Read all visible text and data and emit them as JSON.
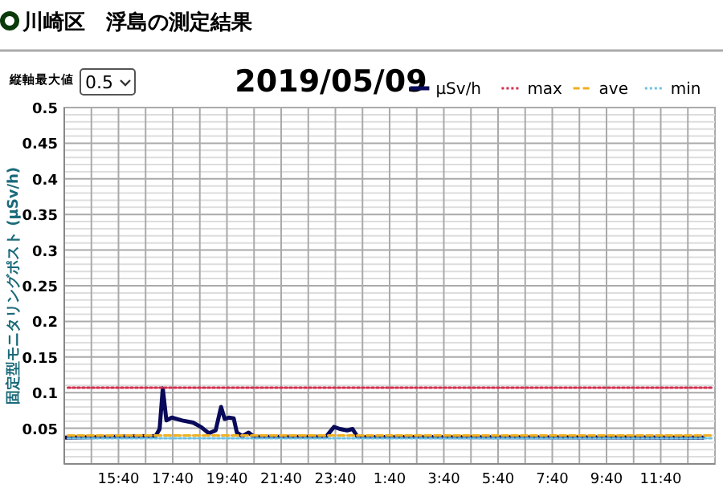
{
  "chart_data": {
    "type": "line",
    "title": "2019/05/09",
    "subtitle": "川崎区　浮島の測定結果",
    "ylabel": "固定型モニタリングポスト (μSv/h)",
    "annotations": [
      "縦軸最大値",
      "0.5"
    ],
    "xlim": [
      "2019-05-08T13:40",
      "2019-05-09T13:40"
    ],
    "xticks": [
      {
        "value": "2019-05-08T14:40",
        "label": null
      },
      {
        "value": "2019-05-08T15:40",
        "label": "15:40"
      },
      {
        "value": "2019-05-08T16:40",
        "label": null
      },
      {
        "value": "2019-05-08T17:40",
        "label": "17:40"
      },
      {
        "value": "2019-05-08T18:40",
        "label": null
      },
      {
        "value": "2019-05-08T19:40",
        "label": "19:40"
      },
      {
        "value": "2019-05-08T20:40",
        "label": null
      },
      {
        "value": "2019-05-08T21:40",
        "label": "21:40"
      },
      {
        "value": "2019-05-08T22:40",
        "label": null
      },
      {
        "value": "2019-05-08T23:40",
        "label": "23:40"
      },
      {
        "value": "2019-05-09T00:40",
        "label": null
      },
      {
        "value": "2019-05-09T01:40",
        "label": "1:40"
      },
      {
        "value": "2019-05-09T02:40",
        "label": null
      },
      {
        "value": "2019-05-09T03:40",
        "label": "3:40"
      },
      {
        "value": "2019-05-09T04:40",
        "label": null
      },
      {
        "value": "2019-05-09T05:40",
        "label": "5:40"
      },
      {
        "value": "2019-05-09T06:40",
        "label": null
      },
      {
        "value": "2019-05-09T07:40",
        "label": "7:40"
      },
      {
        "value": "2019-05-09T08:40",
        "label": null
      },
      {
        "value": "2019-05-09T09:40",
        "label": "9:40"
      },
      {
        "value": "2019-05-09T10:40",
        "label": null
      },
      {
        "value": "2019-05-09T11:40",
        "label": "11:40"
      },
      {
        "value": "2019-05-09T12:40",
        "label": null
      }
    ],
    "ylim": [
      0,
      0.5
    ],
    "yticks": [
      {
        "value": 0.01,
        "label": null
      },
      {
        "value": 0.02,
        "label": null
      },
      {
        "value": 0.03,
        "label": null
      },
      {
        "value": 0.04,
        "label": null
      },
      {
        "value": 0.05,
        "label": "0.05"
      },
      {
        "value": 0.06,
        "label": null
      },
      {
        "value": 0.07,
        "label": null
      },
      {
        "value": 0.08,
        "label": null
      },
      {
        "value": 0.09,
        "label": null
      },
      {
        "value": 0.1,
        "label": "0.1"
      },
      {
        "value": 0.11,
        "label": null
      },
      {
        "value": 0.12,
        "label": null
      },
      {
        "value": 0.13,
        "label": null
      },
      {
        "value": 0.14,
        "label": null
      },
      {
        "value": 0.15,
        "label": "0.15"
      },
      {
        "value": 0.16,
        "label": null
      },
      {
        "value": 0.17,
        "label": null
      },
      {
        "value": 0.18,
        "label": null
      },
      {
        "value": 0.19,
        "label": null
      },
      {
        "value": 0.2,
        "label": "0.2"
      },
      {
        "value": 0.21,
        "label": null
      },
      {
        "value": 0.22,
        "label": null
      },
      {
        "value": 0.23,
        "label": null
      },
      {
        "value": 0.24,
        "label": null
      },
      {
        "value": 0.25,
        "label": "0.25"
      },
      {
        "value": 0.26,
        "label": null
      },
      {
        "value": 0.27,
        "label": null
      },
      {
        "value": 0.28,
        "label": null
      },
      {
        "value": 0.29,
        "label": null
      },
      {
        "value": 0.3,
        "label": "0.3"
      },
      {
        "value": 0.31,
        "label": null
      },
      {
        "value": 0.32,
        "label": null
      },
      {
        "value": 0.33,
        "label": null
      },
      {
        "value": 0.34,
        "label": null
      },
      {
        "value": 0.35,
        "label": "0.35"
      },
      {
        "value": 0.36,
        "label": null
      },
      {
        "value": 0.37,
        "label": null
      },
      {
        "value": 0.38,
        "label": null
      },
      {
        "value": 0.39,
        "label": null
      },
      {
        "value": 0.4,
        "label": "0.4"
      },
      {
        "value": 0.41,
        "label": null
      },
      {
        "value": 0.42,
        "label": null
      },
      {
        "value": 0.43,
        "label": null
      },
      {
        "value": 0.44,
        "label": null
      },
      {
        "value": 0.45,
        "label": "0.45"
      },
      {
        "value": 0.46,
        "label": null
      },
      {
        "value": 0.47,
        "label": null
      },
      {
        "value": 0.48,
        "label": null
      },
      {
        "value": 0.49,
        "label": null
      },
      {
        "value": 0.5,
        "label": "0.5"
      }
    ],
    "grid": true,
    "legend": "top right",
    "marker": "none",
    "series": [
      {
        "name": "μSv/h",
        "color": "#0a0a5a",
        "line_style": "solid",
        "x": [
          "2019-05-08T13:43",
          "2019-05-08T17:02",
          "2019-05-08T17:11",
          "2019-05-08T17:18",
          "2019-05-08T17:26",
          "2019-05-08T17:38",
          "2019-05-08T18:01",
          "2019-05-08T18:25",
          "2019-05-08T18:42",
          "2019-05-08T19:00",
          "2019-05-08T19:15",
          "2019-05-08T19:27",
          "2019-05-08T19:35",
          "2019-05-08T19:44",
          "2019-05-08T19:55",
          "2019-05-08T20:02",
          "2019-05-08T20:14",
          "2019-05-08T20:28",
          "2019-05-08T20:40",
          "2019-05-08T23:19",
          "2019-05-08T23:37",
          "2019-05-08T23:50",
          "2019-05-09T00:06",
          "2019-05-09T00:18",
          "2019-05-09T00:29",
          "2019-05-09T13:14"
        ],
        "values": [
          0.037,
          0.039,
          0.049,
          0.106,
          0.061,
          0.065,
          0.061,
          0.058,
          0.052,
          0.043,
          0.047,
          0.08,
          0.063,
          0.065,
          0.064,
          0.044,
          0.039,
          0.044,
          0.038,
          0.038,
          0.052,
          0.049,
          0.047,
          0.049,
          0.038,
          0.037
        ]
      },
      {
        "name": "max",
        "color": "#d03050",
        "line_style": "dotted",
        "x": [
          "2019-05-08T13:48",
          "2019-05-09T13:36"
        ],
        "values": [
          0.107,
          0.107
        ]
      },
      {
        "name": "ave",
        "color": "#f0b020",
        "line_style": "dashed",
        "x": [
          "2019-05-08T13:48",
          "2019-05-09T13:36"
        ],
        "values": [
          0.04,
          0.04
        ]
      },
      {
        "name": "min",
        "color": "#70c0e0",
        "line_style": "dotted",
        "x": [
          "2019-05-08T13:48",
          "2019-05-09T13:36"
        ],
        "values": [
          0.036,
          0.036
        ]
      }
    ]
  }
}
